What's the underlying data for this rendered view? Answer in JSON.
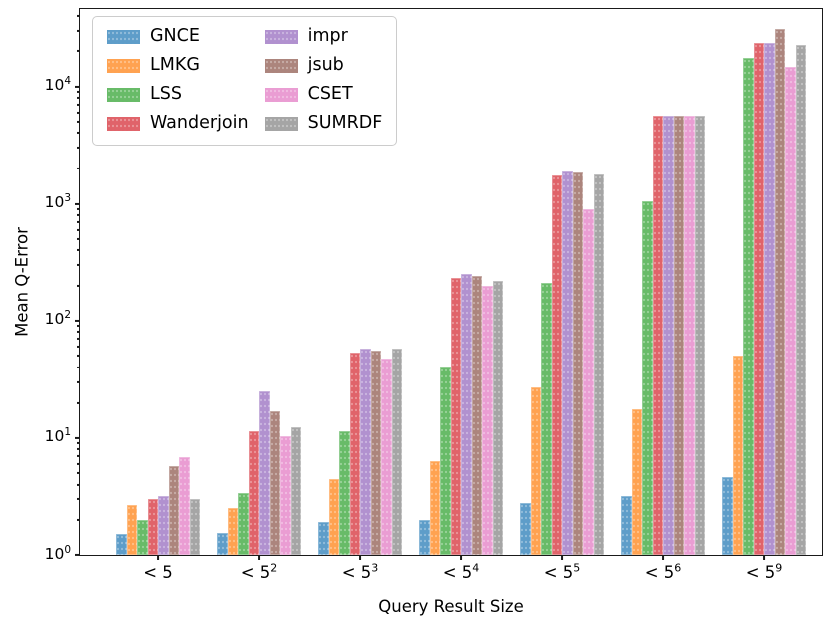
{
  "chart_data": {
    "type": "bar",
    "title": "",
    "xlabel": "Query Result Size",
    "ylabel": "Mean Q-Error",
    "yscale": "log",
    "ylim": [
      1,
      46000
    ],
    "y_major_ticks": [
      1,
      10,
      100,
      1000,
      10000
    ],
    "grid": false,
    "legend_position": "upper left",
    "categories": [
      "< 5",
      "< 5^2",
      "< 5^3",
      "< 5^4",
      "< 5^5",
      "< 5^6",
      "< 5^9"
    ],
    "series": [
      {
        "name": "GNCE",
        "color": "#5E9DC9",
        "values": [
          1.5,
          1.55,
          1.9,
          2.0,
          2.8,
          3.2,
          4.6
        ]
      },
      {
        "name": "LMKG",
        "color": "#FFA251",
        "values": [
          2.7,
          2.5,
          4.5,
          6.3,
          27,
          17.5,
          50
        ]
      },
      {
        "name": "LSS",
        "color": "#68BB68",
        "values": [
          2.0,
          3.4,
          11.5,
          40,
          210,
          1050,
          17500
        ]
      },
      {
        "name": "Wanderjoin",
        "color": "#E0636A",
        "values": [
          3.0,
          11.5,
          53,
          230,
          1750,
          5600,
          23500
        ]
      },
      {
        "name": "impr",
        "color": "#B191CF",
        "values": [
          3.2,
          25,
          58,
          250,
          1900,
          5600,
          23500
        ]
      },
      {
        "name": "jsub",
        "color": "#AC857D",
        "values": [
          5.8,
          17,
          55,
          240,
          1850,
          5600,
          31000
        ]
      },
      {
        "name": "CSET",
        "color": "#EA9DD3",
        "values": [
          6.9,
          10.3,
          47,
          200,
          900,
          5600,
          14800
        ]
      },
      {
        "name": "SUMRDF",
        "color": "#A5A5A5",
        "values": [
          3.0,
          12.5,
          57,
          220,
          1800,
          5600,
          22500
        ]
      }
    ]
  }
}
